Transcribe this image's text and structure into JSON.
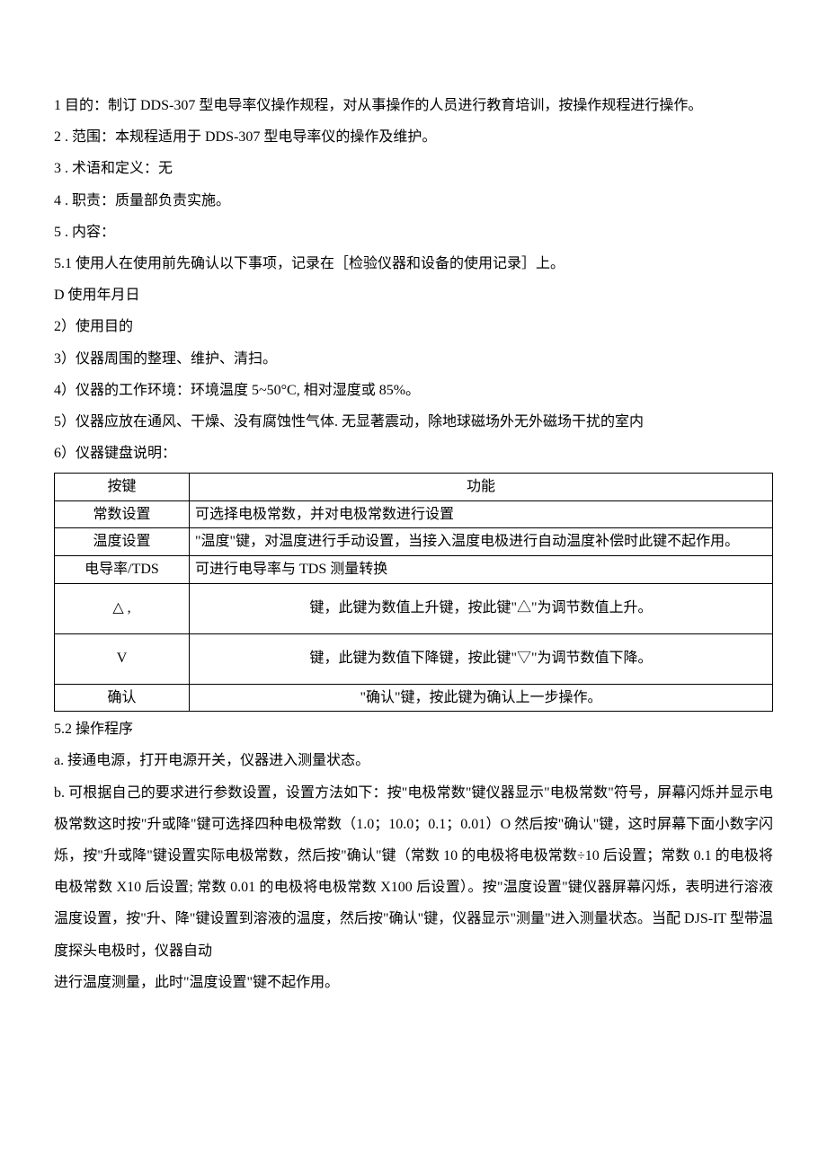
{
  "paragraphs": {
    "p1": "1 目的：制订 DDS-307 型电导率仪操作规程，对从事操作的人员进行教育培训，按操作规程进行操作。",
    "p2": "2 . 范围：本规程适用于 DDS-307 型电导率仪的操作及维护。",
    "p3": "3 . 术语和定义：无",
    "p4": "4 . 职责：质量部负责实施。",
    "p5": "5 . 内容：",
    "p6": "5.1 使用人在使用前先确认以下事项，记录在［检验仪器和设备的使用记录］上。",
    "p7": "D 使用年月日",
    "p8": "2）使用目的",
    "p9": "3）仪器周围的整理、维护、清扫。",
    "p10": "4）仪器的工作环境：环境温度 5~50°C, 相对湿度或 85%。",
    "p11": "5）仪器应放在通风、干燥、没有腐蚀性气体. 无显著震动，除地球磁场外无外磁场干扰的室内",
    "p12": "6）仪器键盘说明："
  },
  "table": {
    "header": {
      "key": "按键",
      "func": "功能"
    },
    "rows": [
      {
        "key": "常数设置",
        "func": "可选择电极常数，并对电极常数进行设置",
        "align": "left",
        "tall": false
      },
      {
        "key": "温度设置",
        "func": "\"温度\"键，对温度进行手动设置，当接入温度电极进行自动温度补偿时此键不起作用。",
        "align": "left",
        "tall": false
      },
      {
        "key": "电导率/TDS",
        "func": "可进行电导率与 TDS 测量转换",
        "align": "left",
        "tall": false
      },
      {
        "key": "△ ,",
        "func": "键，此键为数值上升键，按此键\"△\"为调节数值上升。",
        "align": "center",
        "tall": true
      },
      {
        "key": "V",
        "func": "键，此键为数值下降键，按此键\"▽\"为调节数值下降。",
        "align": "center",
        "tall": true
      },
      {
        "key": "确认",
        "func": "\"确认\"键，按此键为确认上一步操作。",
        "align": "center",
        "tall": false
      }
    ]
  },
  "after": {
    "a1": "5.2 操作程序",
    "a2": "a. 接通电源，打开电源开关，仪器进入测量状态。",
    "a3": "b. 可根据自己的要求进行参数设置，设置方法如下：按\"电极常数\"键仪器显示\"电极常数\"符号，屏幕闪烁并显示电极常数这时按\"升或降\"键可选择四种电极常数（1.0；10.0；0.1；0.01）O 然后按\"确认\"键，这时屏幕下面小数字闪烁，按\"升或降\"键设置实际电极常数，然后按\"确认\"键（常数 10 的电极将电极常数÷10 后设置；常数 0.1 的电极将电极常数 X10 后设置; 常数 0.01 的电极将电极常数 X100 后设置）。按\"温度设置\"键仪器屏幕闪烁，表明进行溶液温度设置，按\"升、降\"键设置到溶液的温度，然后按\"确认\"键，仪器显示\"测量\"进入测量状态。当配 DJS-IT 型带温度探头电极时，仪器自动",
    "a4": "进行温度测量，此时\"温度设置\"键不起作用。"
  }
}
